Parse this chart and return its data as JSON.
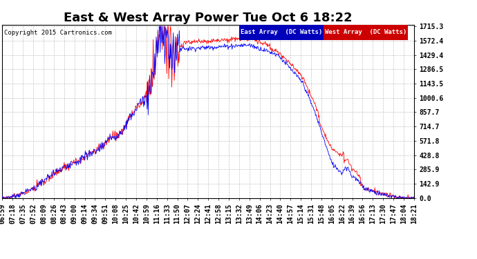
{
  "title": "East & West Array Power Tue Oct 6 18:22",
  "copyright": "Copyright 2015 Cartronics.com",
  "legend_east": "East Array  (DC Watts)",
  "legend_west": "West Array  (DC Watts)",
  "east_color": "#0000ff",
  "west_color": "#ff0000",
  "legend_east_bg": "#0000bb",
  "legend_west_bg": "#cc0000",
  "yticks": [
    0.0,
    142.9,
    285.9,
    428.8,
    571.8,
    714.7,
    857.7,
    1000.6,
    1143.5,
    1286.5,
    1429.4,
    1572.4,
    1715.3
  ],
  "ymax": 1715.3,
  "ymin": 0.0,
  "background_color": "#ffffff",
  "grid_color": "#aaaaaa",
  "title_fontsize": 13,
  "tick_fontsize": 7,
  "xlabel_rotation": 90,
  "xtick_labels": [
    "06:59",
    "07:18",
    "07:35",
    "07:52",
    "08:09",
    "08:26",
    "08:43",
    "09:00",
    "09:14",
    "09:34",
    "09:51",
    "10:08",
    "10:25",
    "10:42",
    "10:59",
    "11:16",
    "11:33",
    "11:50",
    "12:07",
    "12:24",
    "12:41",
    "12:58",
    "13:15",
    "13:32",
    "13:49",
    "14:06",
    "14:23",
    "14:40",
    "14:57",
    "15:14",
    "15:31",
    "15:48",
    "16:05",
    "16:22",
    "16:39",
    "16:56",
    "17:13",
    "17:30",
    "17:47",
    "18:04",
    "18:21"
  ]
}
